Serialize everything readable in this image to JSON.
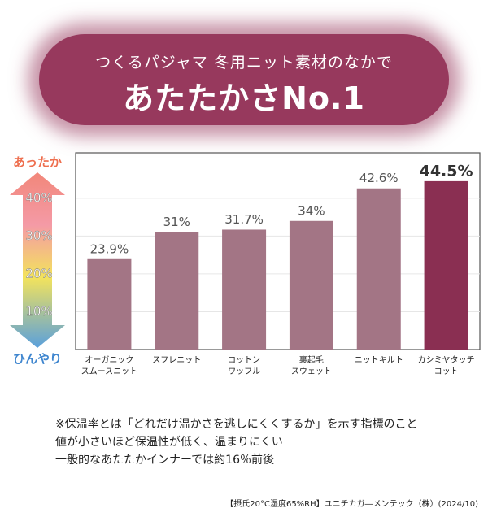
{
  "header": {
    "subtitle": "つくるパジャマ 冬用ニット素材のなかで",
    "title": "あたたかさNo.1"
  },
  "chart_data": {
    "type": "bar",
    "top_label": "あったか",
    "bottom_label": "ひんやり",
    "categories": [
      "オーガニック\nスムースニット",
      "スフレニット",
      "コットン\nワッフル",
      "裏起毛\nスウェット",
      "ニットキルト",
      "カシミヤタッチ\nコット"
    ],
    "values": [
      23.9,
      31,
      31.7,
      34,
      42.6,
      44.5
    ],
    "value_labels": [
      "23.9%",
      "31%",
      "31.7%",
      "34%",
      "42.6%",
      "44.5%"
    ],
    "colors": [
      "#a37585",
      "#a37585",
      "#a37585",
      "#a37585",
      "#a37585",
      "#8a2f52"
    ],
    "ylim": [
      0,
      52
    ],
    "yticks": [
      {
        "value": 10,
        "label": "10%"
      },
      {
        "value": 20,
        "label": "20%"
      },
      {
        "value": 30,
        "label": "30%"
      },
      {
        "value": 40,
        "label": "40%"
      }
    ],
    "grid": true
  },
  "notes": [
    "※保温率とは「どれだけ温かさを逃しにくくするか」を示す指標のこと",
    "値が小さいほど保温性が低く、温まりにくい",
    "一般的なあたたかインナーでは約16％前後"
  ],
  "source": "【摂氏20°C湿度65%RH】ユニチカガ―メンテック（株）(2024/10)"
}
